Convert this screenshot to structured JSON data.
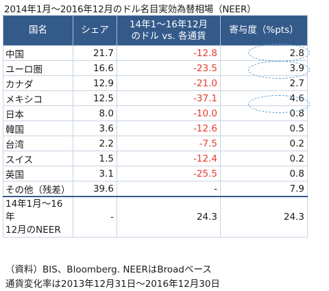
{
  "title": "2014年1月～2016年12月のドル名目実効為替相場（NEER）",
  "headers": {
    "country": "国名",
    "share": "シェア",
    "change_line1": "14年1～16年12月",
    "change_line2": "のドル vs. 各通貨",
    "contribution": "寄与度（%pts）"
  },
  "rows": [
    {
      "name": "中国",
      "share": "21.7",
      "change": "-12.8",
      "contribution": "2.8"
    },
    {
      "name": "ユーロ圏",
      "share": "16.6",
      "change": "-23.5",
      "contribution": "3.9"
    },
    {
      "name": "カナダ",
      "share": "12.9",
      "change": "-21.0",
      "contribution": "2.7"
    },
    {
      "name": "メキシコ",
      "share": "12.5",
      "change": "-37.1",
      "contribution": "4.6"
    },
    {
      "name": "日本",
      "share": "8.0",
      "change": "-10.0",
      "contribution": "0.8"
    },
    {
      "name": "韓国",
      "share": "3.6",
      "change": "-12.6",
      "contribution": "0.5"
    },
    {
      "name": "台湾",
      "share": "2.2",
      "change": "-7.5",
      "contribution": "0.2"
    },
    {
      "name": "スイス",
      "share": "1.5",
      "change": "-12.4",
      "contribution": "0.2"
    },
    {
      "name": "英国",
      "share": "3.1",
      "change": "-25.5",
      "contribution": "0.8"
    },
    {
      "name": "その他（残差）",
      "share": "39.6",
      "change": "-",
      "contribution": "7.9"
    }
  ],
  "total": {
    "name_line1": "14年1月～16年",
    "name_line2": "12月のNEER",
    "share": "-",
    "change": "24.3",
    "contribution": "24.3"
  },
  "notes": {
    "line1": "（資料）BIS、Bloomberg. NEERはBroadベース",
    "line2": "通貨変化率は2013年12月31日～2016年12月30日"
  },
  "colors": {
    "header_bg": "#345a8a",
    "negative_text": "#e33a2f",
    "highlight_oval": "#5b9bd5"
  }
}
